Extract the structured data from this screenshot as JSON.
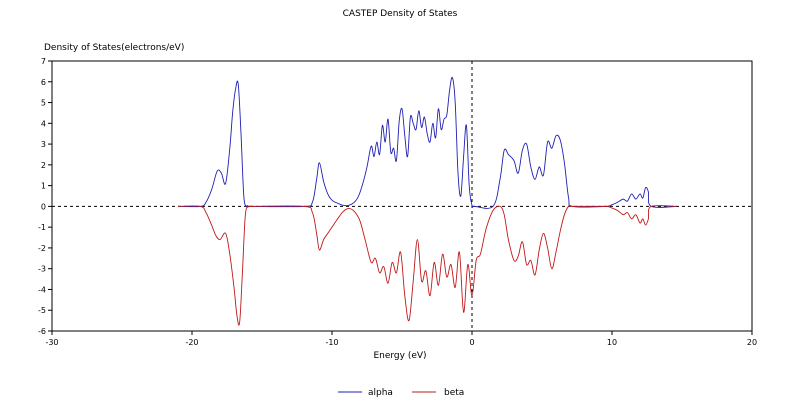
{
  "chart_data": {
    "type": "line",
    "title": "CASTEP Density of States",
    "xlabel": "Energy (eV)",
    "ylabel": "Density of States(electrons/eV)",
    "xlim": [
      -30,
      20
    ],
    "ylim": [
      -6,
      7
    ],
    "xticks": [
      -30,
      -20,
      -10,
      0,
      10,
      20
    ],
    "yticks": [
      -6,
      -5,
      -4,
      -3,
      -2,
      -1,
      0,
      1,
      2,
      3,
      4,
      5,
      6,
      7
    ],
    "grid": false,
    "legend_position": "bottom-center",
    "reference_lines": {
      "x": 0,
      "y": 0,
      "style": "dashed"
    },
    "colors": {
      "alpha": "#1f1fb4",
      "beta": "#c01818",
      "axis": "#000000"
    },
    "series": [
      {
        "name": "alpha",
        "x": [
          -21.0,
          -19.4,
          -19.0,
          -18.6,
          -18.2,
          -17.9,
          -17.6,
          -17.3,
          -17.1,
          -16.9,
          -16.7,
          -16.5,
          -16.3,
          -16.1,
          -15.9,
          -15.7,
          -12.0,
          -11.4,
          -11.1,
          -10.9,
          -10.6,
          -10.3,
          -10.0,
          -9.6,
          -9.2,
          -8.8,
          -8.4,
          -8.1,
          -7.8,
          -7.5,
          -7.2,
          -7.0,
          -6.8,
          -6.6,
          -6.4,
          -6.2,
          -6.0,
          -5.8,
          -5.6,
          -5.4,
          -5.2,
          -5.0,
          -4.8,
          -4.6,
          -4.4,
          -4.2,
          -4.0,
          -3.8,
          -3.6,
          -3.4,
          -3.2,
          -3.0,
          -2.8,
          -2.6,
          -2.4,
          -2.2,
          -2.0,
          -1.8,
          -1.6,
          -1.4,
          -1.2,
          -1.0,
          -0.8,
          -0.6,
          -0.4,
          -0.2,
          0.0,
          0.2,
          1.5,
          2.0,
          2.3,
          2.6,
          3.0,
          3.3,
          3.6,
          3.9,
          4.2,
          4.5,
          4.8,
          5.1,
          5.4,
          5.7,
          6.0,
          6.3,
          6.6,
          6.9,
          7.2,
          9.5,
          10.0,
          10.4,
          10.8,
          11.1,
          11.4,
          11.7,
          12.0,
          12.2,
          12.4,
          12.6,
          12.8,
          14.6
        ],
        "y": [
          0,
          0,
          0.2,
          0.8,
          1.7,
          1.6,
          1.1,
          2.8,
          4.5,
          5.6,
          5.9,
          3.5,
          0.5,
          0,
          0,
          0,
          0,
          0.2,
          1.3,
          2.1,
          1.2,
          0.6,
          0.3,
          0.15,
          0.05,
          0.05,
          0.2,
          0.5,
          1.1,
          1.9,
          2.9,
          2.4,
          3.1,
          2.5,
          3.9,
          3.1,
          4.2,
          2.6,
          2.8,
          2.2,
          4.1,
          4.7,
          3.4,
          2.4,
          4.3,
          4.0,
          3.7,
          4.6,
          3.8,
          4.3,
          3.5,
          3.1,
          4.0,
          3.3,
          4.7,
          3.7,
          4.2,
          4.4,
          5.6,
          6.2,
          5.0,
          1.6,
          0.5,
          2.4,
          3.9,
          1.0,
          0.05,
          0,
          0,
          1.3,
          2.7,
          2.5,
          2.2,
          1.6,
          2.7,
          3.0,
          1.9,
          1.3,
          1.9,
          1.5,
          3.1,
          2.8,
          3.4,
          3.2,
          2.1,
          0.4,
          0,
          0,
          0.08,
          0.2,
          0.35,
          0.25,
          0.6,
          0.35,
          0.6,
          0.4,
          0.9,
          0.7,
          0,
          0
        ]
      },
      {
        "name": "beta",
        "x": [
          -21.0,
          -19.4,
          -19.0,
          -18.6,
          -18.3,
          -18.0,
          -17.6,
          -17.3,
          -17.0,
          -16.8,
          -16.6,
          -16.4,
          -16.2,
          -16.0,
          -15.7,
          -12.0,
          -11.4,
          -11.1,
          -10.9,
          -10.6,
          -10.3,
          -10.0,
          -9.6,
          -9.2,
          -8.8,
          -8.4,
          -8.0,
          -7.6,
          -7.2,
          -6.9,
          -6.6,
          -6.3,
          -6.0,
          -5.7,
          -5.4,
          -5.1,
          -4.8,
          -4.5,
          -4.2,
          -3.9,
          -3.6,
          -3.3,
          -3.0,
          -2.7,
          -2.4,
          -2.1,
          -1.8,
          -1.5,
          -1.2,
          -0.9,
          -0.6,
          -0.3,
          0.0,
          0.3,
          0.6,
          1.0,
          1.5,
          2.0,
          2.3,
          2.6,
          3.0,
          3.3,
          3.6,
          3.9,
          4.2,
          4.5,
          4.8,
          5.1,
          5.4,
          5.7,
          6.0,
          6.3,
          6.6,
          6.9,
          7.2,
          9.5,
          10.0,
          10.4,
          10.8,
          11.1,
          11.4,
          11.7,
          12.0,
          12.2,
          12.4,
          12.6,
          12.8,
          14.6
        ],
        "y": [
          0,
          0,
          -0.3,
          -0.9,
          -1.4,
          -1.6,
          -1.3,
          -2.3,
          -3.9,
          -5.2,
          -5.6,
          -3.2,
          -0.5,
          0,
          0,
          0,
          -0.3,
          -1.3,
          -2.1,
          -1.6,
          -1.3,
          -1.0,
          -0.6,
          -0.25,
          -0.1,
          -0.25,
          -0.7,
          -1.7,
          -2.7,
          -2.5,
          -3.2,
          -2.9,
          -3.7,
          -2.7,
          -3.2,
          -2.2,
          -4.3,
          -5.5,
          -3.6,
          -1.6,
          -3.6,
          -3.1,
          -4.3,
          -2.7,
          -3.8,
          -2.3,
          -3.4,
          -2.8,
          -3.9,
          -2.2,
          -5.1,
          -2.8,
          -4.3,
          -2.6,
          -2.3,
          -1.1,
          -0.2,
          0,
          -0.4,
          -1.6,
          -2.6,
          -2.4,
          -1.7,
          -2.8,
          -2.6,
          -3.3,
          -2.1,
          -1.3,
          -2.0,
          -3.0,
          -2.2,
          -1.2,
          -0.4,
          0,
          0,
          0,
          -0.08,
          -0.2,
          -0.4,
          -0.3,
          -0.6,
          -0.4,
          -0.8,
          -0.6,
          -0.9,
          -0.6,
          0,
          0
        ]
      }
    ]
  }
}
